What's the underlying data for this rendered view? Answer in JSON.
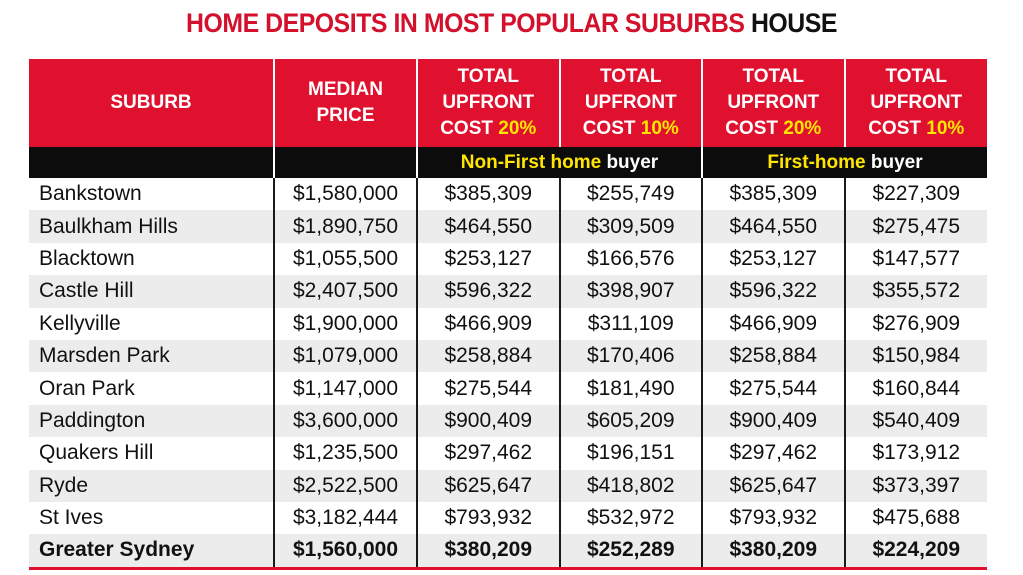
{
  "title": {
    "red": "HOME DEPOSITS IN MOST POPULAR SUBURBS",
    "black": "HOUSE"
  },
  "colors": {
    "accent": "#e0112f",
    "highlight": "#ffe500",
    "band": "#0c0c0c"
  },
  "headers": {
    "suburb": "SUBURB",
    "median_line1": "MEDIAN",
    "median_line2": "PRICE",
    "cols": [
      {
        "l1": "TOTAL",
        "l2": "UPFRONT",
        "l3": "COST",
        "pct": "20%"
      },
      {
        "l1": "TOTAL",
        "l2": "UPFRONT",
        "l3": "COST",
        "pct": "10%"
      },
      {
        "l1": "TOTAL",
        "l2": "UPFRONT",
        "l3": "COST",
        "pct": "20%"
      },
      {
        "l1": "TOTAL",
        "l2": "UPFRONT",
        "l3": "COST",
        "pct": "10%"
      }
    ]
  },
  "groups": [
    {
      "highlight": "Non-First home",
      "rest": "buyer"
    },
    {
      "highlight": "First-home",
      "rest": "buyer"
    }
  ],
  "rows": [
    [
      "Bankstown",
      "$1,580,000",
      "$385,309",
      "$255,749",
      "$385,309",
      "$227,309"
    ],
    [
      "Baulkham Hills",
      "$1,890,750",
      "$464,550",
      "$309,509",
      "$464,550",
      "$275,475"
    ],
    [
      "Blacktown",
      "$1,055,500",
      "$253,127",
      "$166,576",
      "$253,127",
      "$147,577"
    ],
    [
      "Castle Hill",
      "$2,407,500",
      "$596,322",
      "$398,907",
      "$596,322",
      "$355,572"
    ],
    [
      "Kellyville",
      "$1,900,000",
      "$466,909",
      "$311,109",
      "$466,909",
      "$276,909"
    ],
    [
      "Marsden Park",
      "$1,079,000",
      "$258,884",
      "$170,406",
      "$258,884",
      "$150,984"
    ],
    [
      "Oran Park",
      "$1,147,000",
      "$275,544",
      "$181,490",
      "$275,544",
      "$160,844"
    ],
    [
      "Paddington",
      "$3,600,000",
      "$900,409",
      "$605,209",
      "$900,409",
      "$540,409"
    ],
    [
      "Quakers Hill",
      "$1,235,500",
      "$297,462",
      "$196,151",
      "$297,462",
      "$173,912"
    ],
    [
      "Ryde",
      "$2,522,500",
      "$625,647",
      "$418,802",
      "$625,647",
      "$373,397"
    ],
    [
      "St Ives",
      "$3,182,444",
      "$793,932",
      "$532,972",
      "$793,932",
      "$475,688"
    ]
  ],
  "total": [
    "Greater Sydney",
    "$1,560,000",
    "$380,209",
    "$252,289",
    "$380,209",
    "$224,209"
  ]
}
